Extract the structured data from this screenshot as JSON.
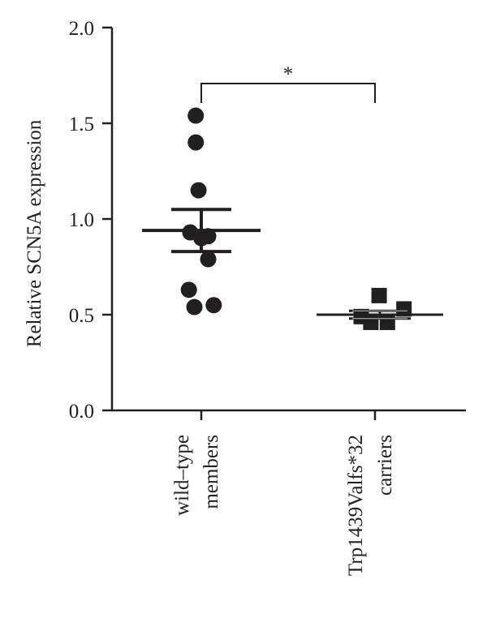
{
  "chart_data": {
    "type": "scatter",
    "ylabel": "Relative SCN5A expression",
    "ylim": [
      0,
      2
    ],
    "yticks": [
      "0.0",
      "0.5",
      "1.0",
      "1.5",
      "2.0"
    ],
    "ytick_values": [
      0,
      0.5,
      1.0,
      1.5,
      2.0
    ],
    "categories": [
      {
        "line1": "wild–type",
        "line2": "members"
      },
      {
        "line1": "Trp1439Valfs*32",
        "line2": "carriers"
      }
    ],
    "groups": [
      {
        "marker": "circle",
        "points": [
          {
            "x": -0.04,
            "y": 1.54
          },
          {
            "x": -0.04,
            "y": 1.4
          },
          {
            "x": -0.02,
            "y": 1.15
          },
          {
            "x": -0.08,
            "y": 0.93
          },
          {
            "x": 0.0,
            "y": 0.9
          },
          {
            "x": 0.05,
            "y": 0.91
          },
          {
            "x": 0.05,
            "y": 0.79
          },
          {
            "x": -0.09,
            "y": 0.63
          },
          {
            "x": -0.05,
            "y": 0.54
          },
          {
            "x": 0.09,
            "y": 0.55
          }
        ],
        "mean": 0.94,
        "error_low": 0.83,
        "error_high": 1.05
      },
      {
        "marker": "square",
        "points": [
          {
            "x": 0.03,
            "y": 0.6
          },
          {
            "x": -0.1,
            "y": 0.49
          },
          {
            "x": 0.21,
            "y": 0.53
          },
          {
            "x": -0.03,
            "y": 0.46
          },
          {
            "x": 0.09,
            "y": 0.46
          }
        ],
        "mean": 0.5,
        "error_low": 0.48,
        "error_high": 0.52
      }
    ],
    "significance": {
      "label": "*",
      "between": [
        0,
        1
      ]
    }
  }
}
